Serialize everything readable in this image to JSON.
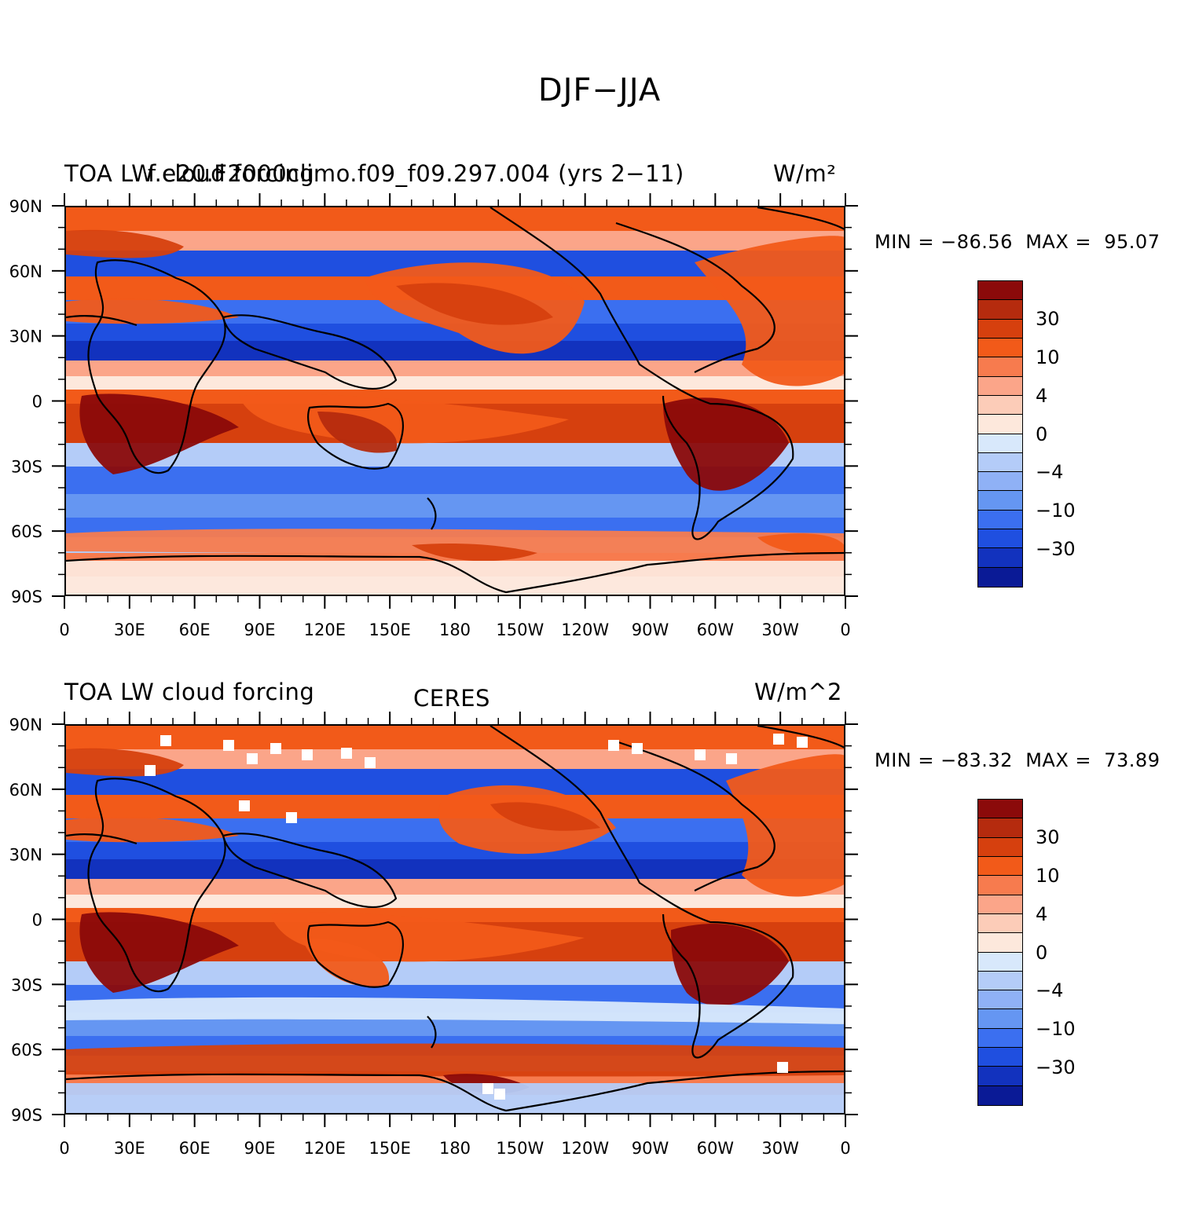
{
  "figure": {
    "title": "DJF−JJA"
  },
  "panels": [
    {
      "id": "model",
      "left_label_1": "TOA LW cloud forcing",
      "left_label_2": "f.e20.F2000climo.f09_f09.297.004 (yrs 2−11)",
      "right_label": "W/m²",
      "center_label": "",
      "min_label": "MIN = −86.56",
      "max_label": "MAX =  95.07",
      "min_value": -86.56,
      "max_value": 95.07
    },
    {
      "id": "obs",
      "left_label_1": "TOA LW cloud forcing",
      "left_label_2": "",
      "center_label": "CERES",
      "right_label": "W/m^2",
      "min_label": "MIN = −83.32",
      "max_label": "MAX =  73.89",
      "min_value": -83.32,
      "max_value": 73.89
    }
  ],
  "colorbar": {
    "colors": [
      "#8b0a0a",
      "#b52b0e",
      "#d6400e",
      "#f25a19",
      "#f77b4e",
      "#fba589",
      "#fcccb8",
      "#fde8dc",
      "#d8e8fb",
      "#b4ccf8",
      "#8fb1f6",
      "#6596f2",
      "#3b6ff0",
      "#1f4fe0",
      "#1232be",
      "#0a1a96"
    ],
    "tick_labels": [
      "30",
      "10",
      "4",
      "0",
      "−4",
      "−10",
      "−30"
    ]
  },
  "axes": {
    "lat_labels": [
      "90N",
      "60N",
      "30N",
      "0",
      "30S",
      "60S",
      "90S"
    ],
    "lon_labels": [
      "0",
      "30E",
      "60E",
      "90E",
      "120E",
      "150E",
      "180",
      "150W",
      "120W",
      "90W",
      "60W",
      "30W",
      "0"
    ],
    "lon_range": [
      0,
      360
    ],
    "lat_range": [
      -90,
      90
    ]
  },
  "map_legend": {
    "projection": "cylindrical equidistant",
    "coastlines": "on"
  }
}
